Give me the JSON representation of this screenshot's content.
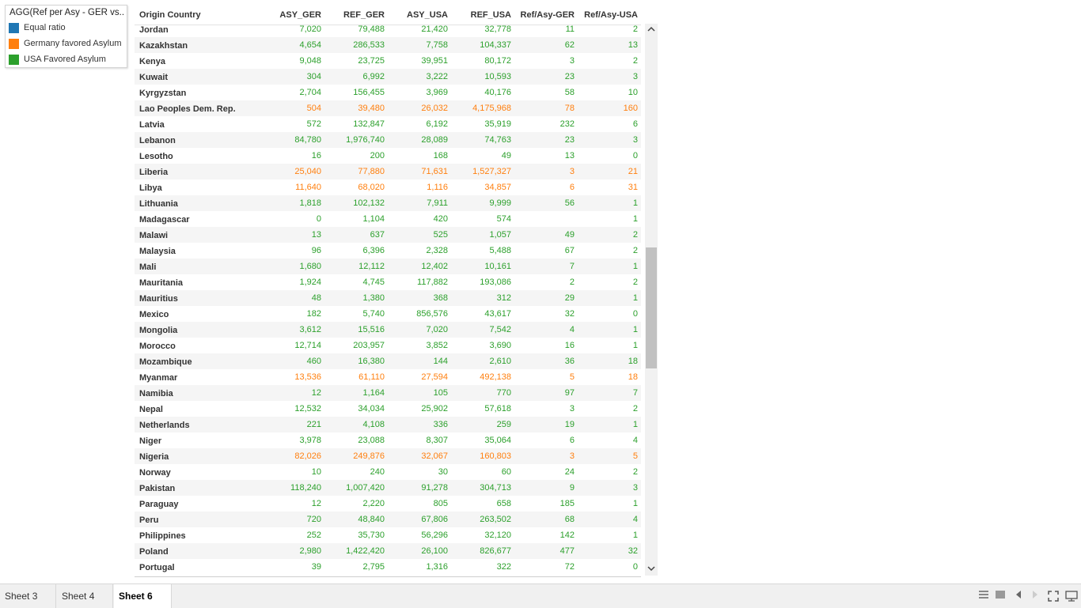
{
  "colors": {
    "equal_ratio": "#1f77b4",
    "germany_favored": "#ff7f0e",
    "usa_favored": "#2ca02c"
  },
  "legend": {
    "title": "AGG(Ref per Asy - GER vs...",
    "items": [
      {
        "label": "Equal ratio",
        "color": "#1f77b4"
      },
      {
        "label": "Germany favored Asylum",
        "color": "#ff7f0e"
      },
      {
        "label": "USA Favored Asylum",
        "color": "#2ca02c"
      }
    ]
  },
  "table": {
    "headers": [
      "Origin Country",
      "ASY_GER",
      "REF_GER",
      "ASY_USA",
      "REF_USA",
      "Ref/Asy-GER",
      "Ref/Asy-USA"
    ],
    "rows": [
      {
        "country": "Jordan",
        "asy_ger": "7,020",
        "ref_ger": "79,488",
        "asy_usa": "21,420",
        "ref_usa": "32,778",
        "ratio_ger": "11",
        "ratio_usa": "2",
        "category": "usa"
      },
      {
        "country": "Kazakhstan",
        "asy_ger": "4,654",
        "ref_ger": "286,533",
        "asy_usa": "7,758",
        "ref_usa": "104,337",
        "ratio_ger": "62",
        "ratio_usa": "13",
        "category": "usa"
      },
      {
        "country": "Kenya",
        "asy_ger": "9,048",
        "ref_ger": "23,725",
        "asy_usa": "39,951",
        "ref_usa": "80,172",
        "ratio_ger": "3",
        "ratio_usa": "2",
        "category": "usa"
      },
      {
        "country": "Kuwait",
        "asy_ger": "304",
        "ref_ger": "6,992",
        "asy_usa": "3,222",
        "ref_usa": "10,593",
        "ratio_ger": "23",
        "ratio_usa": "3",
        "category": "usa"
      },
      {
        "country": "Kyrgyzstan",
        "asy_ger": "2,704",
        "ref_ger": "156,455",
        "asy_usa": "3,969",
        "ref_usa": "40,176",
        "ratio_ger": "58",
        "ratio_usa": "10",
        "category": "usa"
      },
      {
        "country": "Lao Peoples Dem. Rep.",
        "asy_ger": "504",
        "ref_ger": "39,480",
        "asy_usa": "26,032",
        "ref_usa": "4,175,968",
        "ratio_ger": "78",
        "ratio_usa": "160",
        "category": "germany"
      },
      {
        "country": "Latvia",
        "asy_ger": "572",
        "ref_ger": "132,847",
        "asy_usa": "6,192",
        "ref_usa": "35,919",
        "ratio_ger": "232",
        "ratio_usa": "6",
        "category": "usa"
      },
      {
        "country": "Lebanon",
        "asy_ger": "84,780",
        "ref_ger": "1,976,740",
        "asy_usa": "28,089",
        "ref_usa": "74,763",
        "ratio_ger": "23",
        "ratio_usa": "3",
        "category": "usa"
      },
      {
        "country": "Lesotho",
        "asy_ger": "16",
        "ref_ger": "200",
        "asy_usa": "168",
        "ref_usa": "49",
        "ratio_ger": "13",
        "ratio_usa": "0",
        "category": "usa"
      },
      {
        "country": "Liberia",
        "asy_ger": "25,040",
        "ref_ger": "77,880",
        "asy_usa": "71,631",
        "ref_usa": "1,527,327",
        "ratio_ger": "3",
        "ratio_usa": "21",
        "category": "germany"
      },
      {
        "country": "Libya",
        "asy_ger": "11,640",
        "ref_ger": "68,020",
        "asy_usa": "1,116",
        "ref_usa": "34,857",
        "ratio_ger": "6",
        "ratio_usa": "31",
        "category": "germany"
      },
      {
        "country": "Lithuania",
        "asy_ger": "1,818",
        "ref_ger": "102,132",
        "asy_usa": "7,911",
        "ref_usa": "9,999",
        "ratio_ger": "56",
        "ratio_usa": "1",
        "category": "usa"
      },
      {
        "country": "Madagascar",
        "asy_ger": "0",
        "ref_ger": "1,104",
        "asy_usa": "420",
        "ref_usa": "574",
        "ratio_ger": "",
        "ratio_usa": "1",
        "category": "usa"
      },
      {
        "country": "Malawi",
        "asy_ger": "13",
        "ref_ger": "637",
        "asy_usa": "525",
        "ref_usa": "1,057",
        "ratio_ger": "49",
        "ratio_usa": "2",
        "category": "usa"
      },
      {
        "country": "Malaysia",
        "asy_ger": "96",
        "ref_ger": "6,396",
        "asy_usa": "2,328",
        "ref_usa": "5,488",
        "ratio_ger": "67",
        "ratio_usa": "2",
        "category": "usa"
      },
      {
        "country": "Mali",
        "asy_ger": "1,680",
        "ref_ger": "12,112",
        "asy_usa": "12,402",
        "ref_usa": "10,161",
        "ratio_ger": "7",
        "ratio_usa": "1",
        "category": "usa"
      },
      {
        "country": "Mauritania",
        "asy_ger": "1,924",
        "ref_ger": "4,745",
        "asy_usa": "117,882",
        "ref_usa": "193,086",
        "ratio_ger": "2",
        "ratio_usa": "2",
        "category": "usa"
      },
      {
        "country": "Mauritius",
        "asy_ger": "48",
        "ref_ger": "1,380",
        "asy_usa": "368",
        "ref_usa": "312",
        "ratio_ger": "29",
        "ratio_usa": "1",
        "category": "usa"
      },
      {
        "country": "Mexico",
        "asy_ger": "182",
        "ref_ger": "5,740",
        "asy_usa": "856,576",
        "ref_usa": "43,617",
        "ratio_ger": "32",
        "ratio_usa": "0",
        "category": "usa"
      },
      {
        "country": "Mongolia",
        "asy_ger": "3,612",
        "ref_ger": "15,516",
        "asy_usa": "7,020",
        "ref_usa": "7,542",
        "ratio_ger": "4",
        "ratio_usa": "1",
        "category": "usa"
      },
      {
        "country": "Morocco",
        "asy_ger": "12,714",
        "ref_ger": "203,957",
        "asy_usa": "3,852",
        "ref_usa": "3,690",
        "ratio_ger": "16",
        "ratio_usa": "1",
        "category": "usa"
      },
      {
        "country": "Mozambique",
        "asy_ger": "460",
        "ref_ger": "16,380",
        "asy_usa": "144",
        "ref_usa": "2,610",
        "ratio_ger": "36",
        "ratio_usa": "18",
        "category": "usa"
      },
      {
        "country": "Myanmar",
        "asy_ger": "13,536",
        "ref_ger": "61,110",
        "asy_usa": "27,594",
        "ref_usa": "492,138",
        "ratio_ger": "5",
        "ratio_usa": "18",
        "category": "germany"
      },
      {
        "country": "Namibia",
        "asy_ger": "12",
        "ref_ger": "1,164",
        "asy_usa": "105",
        "ref_usa": "770",
        "ratio_ger": "97",
        "ratio_usa": "7",
        "category": "usa"
      },
      {
        "country": "Nepal",
        "asy_ger": "12,532",
        "ref_ger": "34,034",
        "asy_usa": "25,902",
        "ref_usa": "57,618",
        "ratio_ger": "3",
        "ratio_usa": "2",
        "category": "usa"
      },
      {
        "country": "Netherlands",
        "asy_ger": "221",
        "ref_ger": "4,108",
        "asy_usa": "336",
        "ref_usa": "259",
        "ratio_ger": "19",
        "ratio_usa": "1",
        "category": "usa"
      },
      {
        "country": "Niger",
        "asy_ger": "3,978",
        "ref_ger": "23,088",
        "asy_usa": "8,307",
        "ref_usa": "35,064",
        "ratio_ger": "6",
        "ratio_usa": "4",
        "category": "usa"
      },
      {
        "country": "Nigeria",
        "asy_ger": "82,026",
        "ref_ger": "249,876",
        "asy_usa": "32,067",
        "ref_usa": "160,803",
        "ratio_ger": "3",
        "ratio_usa": "5",
        "category": "germany"
      },
      {
        "country": "Norway",
        "asy_ger": "10",
        "ref_ger": "240",
        "asy_usa": "30",
        "ref_usa": "60",
        "ratio_ger": "24",
        "ratio_usa": "2",
        "category": "usa"
      },
      {
        "country": "Pakistan",
        "asy_ger": "118,240",
        "ref_ger": "1,007,420",
        "asy_usa": "91,278",
        "ref_usa": "304,713",
        "ratio_ger": "9",
        "ratio_usa": "3",
        "category": "usa"
      },
      {
        "country": "Paraguay",
        "asy_ger": "12",
        "ref_ger": "2,220",
        "asy_usa": "805",
        "ref_usa": "658",
        "ratio_ger": "185",
        "ratio_usa": "1",
        "category": "usa"
      },
      {
        "country": "Peru",
        "asy_ger": "720",
        "ref_ger": "48,840",
        "asy_usa": "67,806",
        "ref_usa": "263,502",
        "ratio_ger": "68",
        "ratio_usa": "4",
        "category": "usa"
      },
      {
        "country": "Philippines",
        "asy_ger": "252",
        "ref_ger": "35,730",
        "asy_usa": "56,296",
        "ref_usa": "32,120",
        "ratio_ger": "142",
        "ratio_usa": "1",
        "category": "usa"
      },
      {
        "country": "Poland",
        "asy_ger": "2,980",
        "ref_ger": "1,422,420",
        "asy_usa": "26,100",
        "ref_usa": "826,677",
        "ratio_ger": "477",
        "ratio_usa": "32",
        "category": "usa"
      },
      {
        "country": "Portugal",
        "asy_ger": "39",
        "ref_ger": "2,795",
        "asy_usa": "1,316",
        "ref_usa": "322",
        "ratio_ger": "72",
        "ratio_usa": "0",
        "category": "usa"
      }
    ]
  },
  "tabs": [
    "Sheet 3",
    "Sheet 4",
    "Sheet 6"
  ],
  "active_tab": "Sheet 6",
  "icons": {
    "scroll_up": "chevron-up-icon",
    "scroll_down": "chevron-down-icon",
    "bottom_controls": [
      "show-filmstrip-icon",
      "show-sheet-sorter-icon",
      "previous-sheet-icon",
      "next-sheet-icon",
      "fit-to-window-icon",
      "presentation-mode-icon"
    ]
  },
  "scrollbar": {
    "position_fraction": 0.52,
    "visible_fraction": 0.23
  }
}
